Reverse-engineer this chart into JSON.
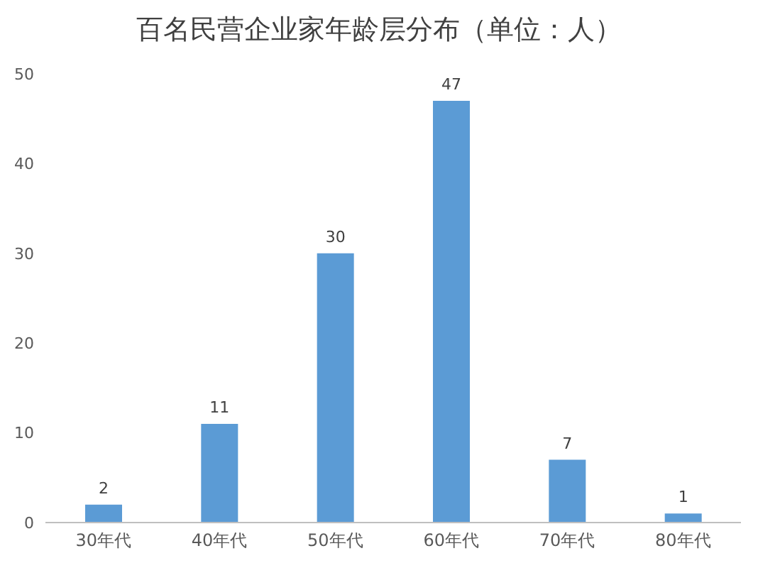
{
  "chart_data": {
    "type": "bar",
    "title": "百名民营企业家年龄层分布（单位：人）",
    "categories": [
      "30年代",
      "40年代",
      "50年代",
      "60年代",
      "70年代",
      "80年代"
    ],
    "values": [
      2,
      11,
      30,
      47,
      7,
      1
    ],
    "color": "#5b9bd5",
    "ylim": [
      0,
      50
    ],
    "yticks": [
      0,
      10,
      20,
      30,
      40,
      50
    ],
    "grid": false,
    "data_labels": true
  }
}
